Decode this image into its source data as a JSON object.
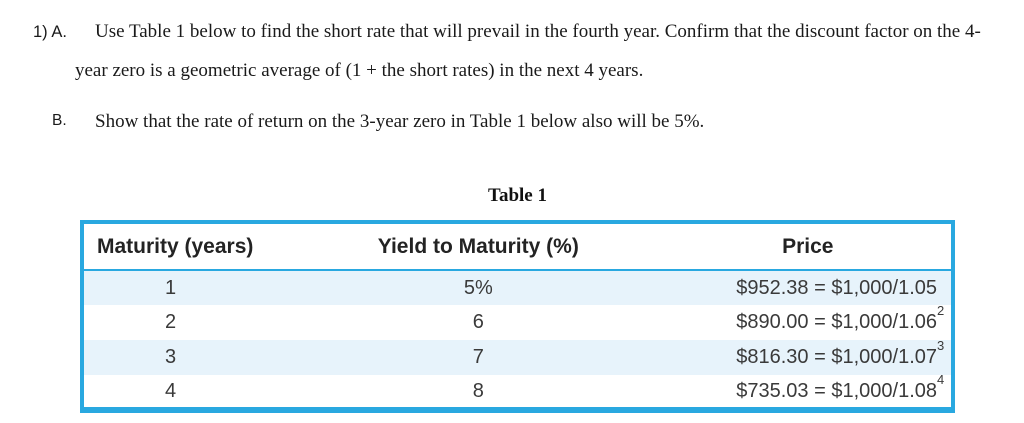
{
  "problem": {
    "item_label": "1) A.",
    "part_a_text": "Use Table 1 below to find the short rate that will prevail in the fourth year. Confirm that the discount factor on the 4-year zero is a geometric average of (1 + the short rates) in the next 4 years.",
    "part_b_label": "B.",
    "part_b_text": "Show that the rate of return on the 3-year zero in Table 1 below also will be 5%."
  },
  "table": {
    "title": "Table 1",
    "columns": [
      "Maturity (years)",
      "Yield to Maturity (%)",
      "Price"
    ],
    "rows": [
      {
        "maturity": "1",
        "yield": "5%",
        "price": "$952.38 = $1,000/1.05",
        "price_exponent": ""
      },
      {
        "maturity": "2",
        "yield": "6",
        "price": "$890.00 = $1,000/1.06",
        "price_exponent": "2"
      },
      {
        "maturity": "3",
        "yield": "7",
        "price": "$816.30 = $1,000/1.07",
        "price_exponent": "3"
      },
      {
        "maturity": "4",
        "yield": "8",
        "price": "$735.03 = $1,000/1.08",
        "price_exponent": "4"
      }
    ],
    "colors": {
      "border": "#29a8e0",
      "row_stripe": "#e7f3fb",
      "header_text": "#232323",
      "cell_text": "#3a3a3a"
    }
  }
}
